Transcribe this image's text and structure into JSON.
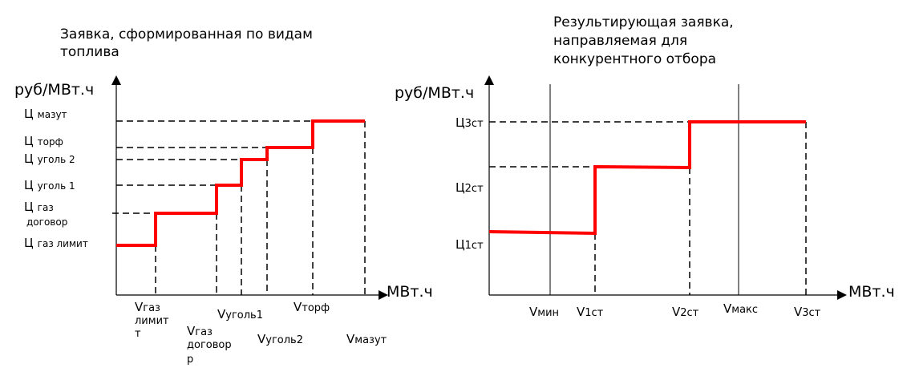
{
  "left_chart": {
    "title_line1": "Заявка, сформированная по видам",
    "title_line2": "топлива",
    "y_axis_label": "руб/МВт.ч",
    "x_axis_label": "МВт.ч",
    "price_labels": [
      {
        "prefix": "Ц",
        "text": "мазут"
      },
      {
        "prefix": "Ц",
        "text": "торф"
      },
      {
        "prefix": "Ц",
        "text": "уголь 2"
      },
      {
        "prefix": "Ц",
        "text": "уголь 1"
      },
      {
        "prefix": "Ц",
        "text_line1": "газ",
        "text_line2": "договор"
      },
      {
        "prefix": "Ц",
        "text": "газ лимит"
      }
    ],
    "volume_labels": [
      {
        "v": "V",
        "sub_line1": "газ",
        "sub_line2": "лимит",
        "sub_line3": "т"
      },
      {
        "v": "V",
        "sub_line1": "газ",
        "sub_line2": "договор",
        "sub_line3": "р"
      },
      {
        "v": "V",
        "sub": "уголь1"
      },
      {
        "v": "V",
        "sub": "уголь2"
      },
      {
        "v": "V",
        "sub": "торф"
      },
      {
        "v": "V",
        "sub": "мазут"
      }
    ]
  },
  "right_chart": {
    "title_line1": "Результирующая заявка,",
    "title_line2": "направляемая для",
    "title_line3": "конкурентного отбора",
    "y_axis_label": "руб/МВт.ч",
    "x_axis_label": "МВт.ч",
    "price_labels": [
      {
        "prefix": "Ц",
        "sub": "3ст"
      },
      {
        "prefix": "Ц",
        "sub": "2ст"
      },
      {
        "prefix": "Ц",
        "sub": "1ст"
      }
    ],
    "volume_labels": [
      {
        "v": "V",
        "sub": "мин"
      },
      {
        "v": "V",
        "sub": "1ст"
      },
      {
        "v": "V",
        "sub": "2ст"
      },
      {
        "v": "V",
        "sub": "макс"
      },
      {
        "v": "V",
        "sub": "3ст"
      }
    ]
  },
  "colors": {
    "step_line": "#ff0000",
    "axis": "#000000",
    "guide": "#000000"
  }
}
